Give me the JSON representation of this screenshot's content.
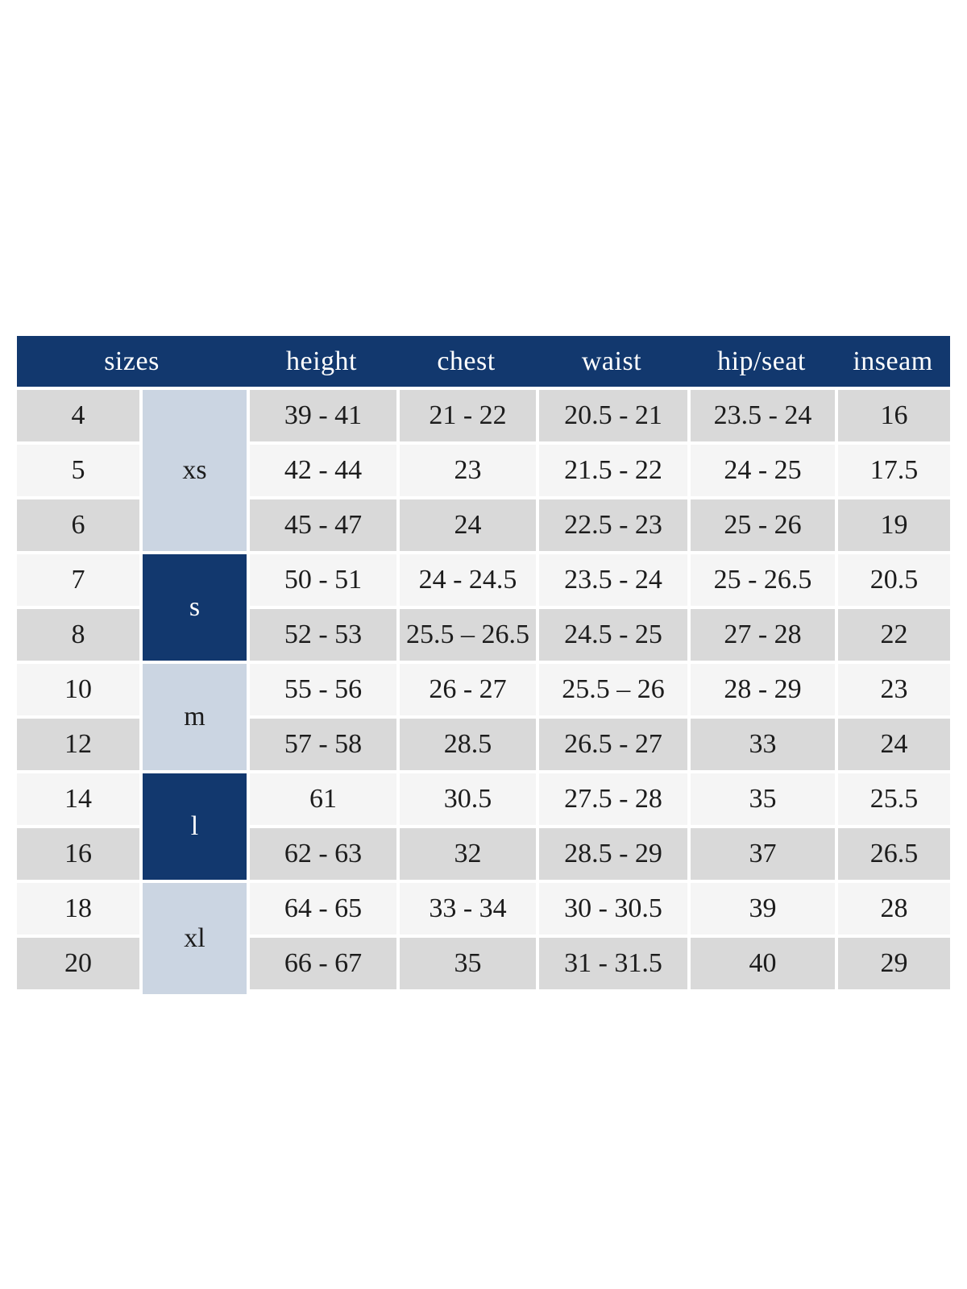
{
  "chart_data": {
    "type": "table",
    "header": {
      "sizes": "sizes",
      "height": "height",
      "chest": "chest",
      "waist": "waist",
      "hip_seat": "hip/seat",
      "inseam": "inseam"
    },
    "groups": [
      {
        "label": "xs",
        "row_span": 3,
        "style": "light"
      },
      {
        "label": "s",
        "row_span": 2,
        "style": "dark"
      },
      {
        "label": "m",
        "row_span": 2,
        "style": "light"
      },
      {
        "label": "l",
        "row_span": 2,
        "style": "dark"
      },
      {
        "label": "xl",
        "row_span": 2,
        "style": "light"
      }
    ],
    "rows": [
      {
        "size": "4",
        "height": "39 - 41",
        "chest": "21 - 22",
        "waist": "20.5 - 21",
        "hip_seat": "23.5 - 24",
        "inseam": "16"
      },
      {
        "size": "5",
        "height": "42 - 44",
        "chest": "23",
        "waist": "21.5 - 22",
        "hip_seat": "24 - 25",
        "inseam": "17.5"
      },
      {
        "size": "6",
        "height": "45 - 47",
        "chest": "24",
        "waist": "22.5 - 23",
        "hip_seat": "25 - 26",
        "inseam": "19"
      },
      {
        "size": "7",
        "height": "50 - 51",
        "chest": "24 - 24.5",
        "waist": "23.5 - 24",
        "hip_seat": "25 - 26.5",
        "inseam": "20.5"
      },
      {
        "size": "8",
        "height": "52 - 53",
        "chest": "25.5 – 26.5",
        "waist": "24.5 - 25",
        "hip_seat": "27 - 28",
        "inseam": "22"
      },
      {
        "size": "10",
        "height": "55 - 56",
        "chest": "26 - 27",
        "waist": "25.5 – 26",
        "hip_seat": "28 - 29",
        "inseam": "23"
      },
      {
        "size": "12",
        "height": "57 - 58",
        "chest": "28.5",
        "waist": "26.5 - 27",
        "hip_seat": "33",
        "inseam": "24"
      },
      {
        "size": "14",
        "height": "61",
        "chest": "30.5",
        "waist": "27.5 - 28",
        "hip_seat": "35",
        "inseam": "25.5"
      },
      {
        "size": "16",
        "height": "62 - 63",
        "chest": "32",
        "waist": "28.5 - 29",
        "hip_seat": "37",
        "inseam": "26.5"
      },
      {
        "size": "18",
        "height": "64 - 65",
        "chest": "33 - 34",
        "waist": "30 - 30.5",
        "hip_seat": "39",
        "inseam": "28"
      },
      {
        "size": "20",
        "height": "66 - 67",
        "chest": "35",
        "waist": "31 - 31.5",
        "hip_seat": "40",
        "inseam": "29"
      }
    ],
    "colors": {
      "header_bg": "#12386E",
      "header_text": "#FFFFFF",
      "group_light_bg": "#CBD5E2",
      "group_dark_bg": "#12386E",
      "row_odd_bg": "#D9D9D9",
      "row_even_bg": "#F5F5F5",
      "body_text": "#1C1C1C",
      "cell_gap": "#FFFFFF"
    }
  }
}
